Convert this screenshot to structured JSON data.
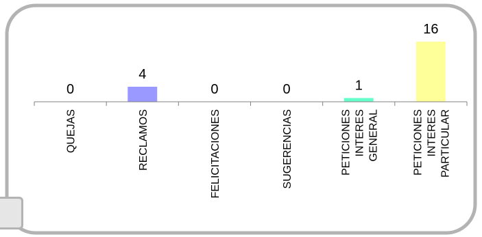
{
  "chart_data": {
    "type": "bar",
    "title": "",
    "xlabel": "",
    "ylabel": "",
    "ylim": [
      0,
      16
    ],
    "grid": false,
    "legend": "none",
    "categories": [
      [
        "QUEJAS"
      ],
      [
        "RECLAMOS"
      ],
      [
        "FELICITACIONES"
      ],
      [
        "SUGERENCIAS"
      ],
      [
        "PETICIONES",
        "INTERES",
        "GENERAL"
      ],
      [
        "PETICIONES",
        "INTERES",
        "PARTICULAR"
      ]
    ],
    "values": [
      0,
      4,
      0,
      0,
      1,
      16
    ],
    "colors": [
      "#9999ff",
      "#9999ff",
      "#9999ff",
      "#9999ff",
      "#66ffcc",
      "#ffff99"
    ]
  }
}
